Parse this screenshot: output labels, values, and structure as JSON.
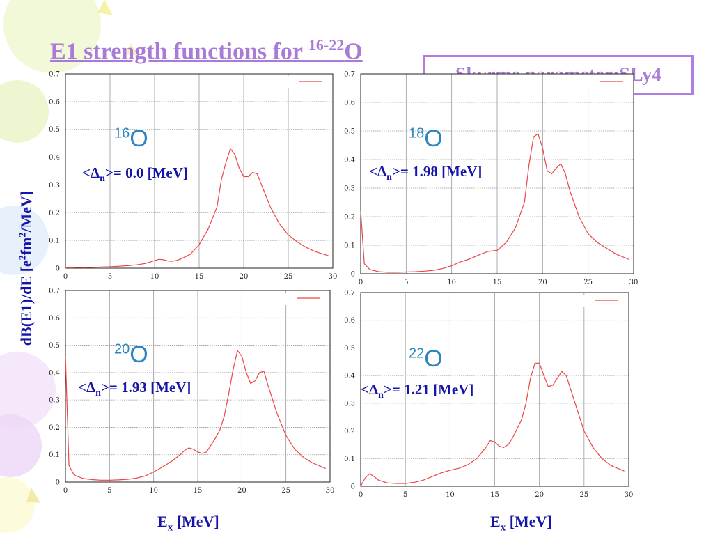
{
  "slide": {
    "title_prefix": "E1 strength functions for ",
    "title_sup": "16-22",
    "title_suffix": "O",
    "param_text": "Skyrme parameter:SLy4",
    "ylabel_a": "dB(E1)/dE [e",
    "ylabel_sup": "2",
    "ylabel_b": "fm",
    "ylabel_sup2": "2",
    "ylabel_c": "/MeV]",
    "xlabel_left_main": "E",
    "xlabel_left_sub": "x",
    "xlabel_left_rest": " [MeV]",
    "xlabel_right_main": "E",
    "xlabel_right_sub": "x",
    "xlabel_right_rest": " [MeV]",
    "theme_colors": {
      "line": "#ee4444",
      "title": "#a97ad8",
      "label": "#1515a8",
      "nucleus": "#2e86c1"
    }
  },
  "panels": [
    {
      "mass": "16",
      "element": "O",
      "delta_pre": "<Δ",
      "delta_sub": "n",
      "delta_post": ">= 0.0 [MeV]"
    },
    {
      "mass": "18",
      "element": "O",
      "delta_pre": "<Δ",
      "delta_sub": "n",
      "delta_post": ">= 1.98 [MeV]"
    },
    {
      "mass": "20",
      "element": "O",
      "delta_pre": "<Δ",
      "delta_sub": "n",
      "delta_post": ">= 1.93 [MeV]"
    },
    {
      "mass": "22",
      "element": "O",
      "delta_pre": "<Δ",
      "delta_sub": "n",
      "delta_post": ">= 1.21 [MeV]"
    }
  ],
  "chart_data": [
    {
      "type": "line",
      "title": "",
      "xlabel": "E_x [MeV]",
      "ylabel": "dB(E1)/dE [e2fm2/MeV]",
      "xlim": [
        0,
        30
      ],
      "ylim": [
        0,
        0.7
      ],
      "xticks": [
        "0",
        "5",
        "10",
        "15",
        "20",
        "25",
        "30"
      ],
      "yticks": [
        "0",
        "0.1",
        "0.2",
        "0.3",
        "0.4",
        "0.5",
        "0.6",
        "0.7"
      ],
      "grid": true,
      "legend": "top-right",
      "series": [
        {
          "x": [
            0,
            0.5,
            1,
            2,
            3,
            4,
            5,
            6,
            7,
            8,
            9,
            10,
            10.5,
            11,
            11.5,
            12,
            12.5,
            13,
            14,
            15,
            16,
            17,
            17.5,
            18,
            18.5,
            19,
            19.5,
            20,
            20.5,
            21,
            21.5,
            22,
            23,
            24,
            25,
            26,
            27,
            28,
            29.5
          ],
          "y": [
            0.0,
            0.004,
            0.003,
            0.002,
            0.003,
            0.004,
            0.005,
            0.007,
            0.009,
            0.012,
            0.017,
            0.027,
            0.032,
            0.03,
            0.026,
            0.025,
            0.028,
            0.034,
            0.05,
            0.085,
            0.14,
            0.22,
            0.32,
            0.38,
            0.43,
            0.41,
            0.36,
            0.33,
            0.33,
            0.345,
            0.34,
            0.3,
            0.22,
            0.16,
            0.12,
            0.095,
            0.075,
            0.06,
            0.045
          ]
        }
      ]
    },
    {
      "type": "line",
      "title": "",
      "xlabel": "E_x [MeV]",
      "ylabel": "dB(E1)/dE [e2fm2/MeV]",
      "xlim": [
        0,
        30
      ],
      "ylim": [
        0,
        0.7
      ],
      "xticks": [
        "0",
        "5",
        "10",
        "15",
        "20",
        "25",
        "30"
      ],
      "yticks": [
        "0",
        "0.1",
        "0.2",
        "0.3",
        "0.4",
        "0.5",
        "0.6",
        "0.7"
      ],
      "grid": true,
      "legend": "top-right",
      "series": [
        {
          "x": [
            0,
            0.4,
            1,
            2,
            3,
            4,
            5,
            6,
            7,
            8,
            9,
            10,
            11,
            12,
            13,
            14,
            15,
            16,
            17,
            18,
            18.5,
            19,
            19.5,
            20,
            20.5,
            21,
            21.5,
            22,
            22.5,
            23,
            24,
            25,
            26,
            27,
            28,
            29.5
          ],
          "y": [
            0.22,
            0.035,
            0.015,
            0.007,
            0.005,
            0.005,
            0.006,
            0.007,
            0.009,
            0.012,
            0.018,
            0.028,
            0.042,
            0.052,
            0.066,
            0.078,
            0.082,
            0.11,
            0.16,
            0.25,
            0.38,
            0.48,
            0.49,
            0.44,
            0.36,
            0.35,
            0.37,
            0.385,
            0.35,
            0.29,
            0.2,
            0.14,
            0.11,
            0.09,
            0.07,
            0.05
          ]
        }
      ]
    },
    {
      "type": "line",
      "title": "",
      "xlabel": "E_x [MeV]",
      "ylabel": "dB(E1)/dE [e2fm2/MeV]",
      "xlim": [
        0,
        30
      ],
      "ylim": [
        0,
        0.7
      ],
      "xticks": [
        "0",
        "5",
        "10",
        "15",
        "20",
        "25",
        "30"
      ],
      "yticks": [
        "0",
        "0.1",
        "0.2",
        "0.3",
        "0.4",
        "0.5",
        "0.6",
        "0.7"
      ],
      "grid": true,
      "legend": "top-right",
      "series": [
        {
          "x": [
            0,
            0.4,
            1,
            2,
            3,
            4,
            5,
            6,
            7,
            8,
            9,
            10,
            11,
            12,
            13,
            13.5,
            14,
            14.5,
            15,
            15.5,
            16,
            17,
            17.5,
            18,
            18.5,
            19,
            19.5,
            20,
            20.5,
            21,
            21.5,
            22,
            22.5,
            23,
            24,
            25,
            26,
            27,
            28,
            29.5
          ],
          "y": [
            0.46,
            0.06,
            0.025,
            0.013,
            0.009,
            0.007,
            0.007,
            0.008,
            0.01,
            0.014,
            0.022,
            0.037,
            0.055,
            0.075,
            0.1,
            0.115,
            0.125,
            0.12,
            0.11,
            0.105,
            0.11,
            0.16,
            0.19,
            0.24,
            0.32,
            0.41,
            0.48,
            0.46,
            0.4,
            0.36,
            0.37,
            0.4,
            0.405,
            0.35,
            0.25,
            0.17,
            0.12,
            0.09,
            0.07,
            0.05
          ]
        }
      ]
    },
    {
      "type": "line",
      "title": "",
      "xlabel": "E_x [MeV]",
      "ylabel": "dB(E1)/dE [e2fm2/MeV]",
      "xlim": [
        0,
        30
      ],
      "ylim": [
        0,
        0.7
      ],
      "xticks": [
        "0",
        "5",
        "10",
        "15",
        "20",
        "25",
        "30"
      ],
      "yticks": [
        "0",
        "0.1",
        "0.2",
        "0.3",
        "0.4",
        "0.5",
        "0.6",
        "0.7"
      ],
      "grid": true,
      "legend": "top-right",
      "series": [
        {
          "x": [
            0,
            0.5,
            1,
            1.5,
            2,
            3,
            4,
            5,
            6,
            7,
            8,
            9,
            10,
            11,
            12,
            13,
            14,
            14.5,
            15,
            15.5,
            16,
            16.5,
            17,
            18,
            18.5,
            19,
            19.5,
            20,
            20.5,
            21,
            21.5,
            22,
            22.5,
            23,
            24,
            25,
            26,
            27,
            28,
            29.5
          ],
          "y": [
            0.0,
            0.03,
            0.045,
            0.035,
            0.022,
            0.012,
            0.01,
            0.01,
            0.014,
            0.022,
            0.035,
            0.048,
            0.058,
            0.065,
            0.078,
            0.1,
            0.14,
            0.165,
            0.16,
            0.145,
            0.14,
            0.15,
            0.175,
            0.24,
            0.3,
            0.39,
            0.445,
            0.445,
            0.4,
            0.36,
            0.365,
            0.39,
            0.415,
            0.4,
            0.3,
            0.2,
            0.14,
            0.1,
            0.075,
            0.055
          ]
        }
      ]
    }
  ]
}
